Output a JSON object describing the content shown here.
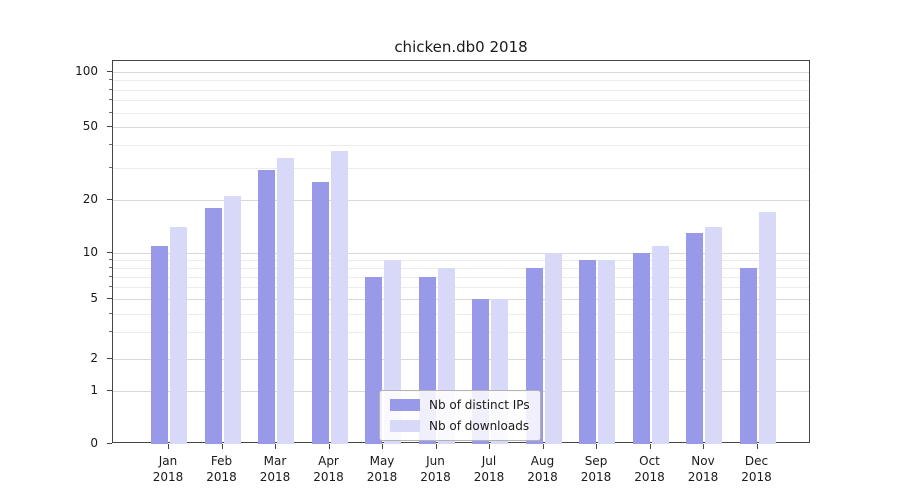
{
  "chart_data": {
    "type": "bar",
    "title": "chicken.db0 2018",
    "yscale": "log",
    "grid": true,
    "legend_position": "lower center",
    "categories": [
      {
        "month": "Jan",
        "year": "2018"
      },
      {
        "month": "Feb",
        "year": "2018"
      },
      {
        "month": "Mar",
        "year": "2018"
      },
      {
        "month": "Apr",
        "year": "2018"
      },
      {
        "month": "May",
        "year": "2018"
      },
      {
        "month": "Jun",
        "year": "2018"
      },
      {
        "month": "Jul",
        "year": "2018"
      },
      {
        "month": "Aug",
        "year": "2018"
      },
      {
        "month": "Sep",
        "year": "2018"
      },
      {
        "month": "Oct",
        "year": "2018"
      },
      {
        "month": "Nov",
        "year": "2018"
      },
      {
        "month": "Dec",
        "year": "2018"
      }
    ],
    "series": [
      {
        "name": "Nb of distinct IPs",
        "color": "#9999ea",
        "values": [
          11,
          18,
          29,
          25,
          7,
          7,
          5,
          8,
          9,
          10,
          13,
          8
        ]
      },
      {
        "name": "Nb of downloads",
        "color": "#d8d8f9",
        "values": [
          14,
          21,
          34,
          37,
          9,
          8,
          5,
          10,
          9,
          11,
          14,
          17
        ]
      }
    ],
    "yticks": [
      100,
      50,
      20,
      10,
      5,
      2,
      1,
      0
    ],
    "y_minor_ticks": [
      3,
      4,
      6,
      7,
      8,
      9,
      30,
      40,
      60,
      70,
      80,
      90
    ],
    "ylim": [
      0,
      110
    ],
    "colors": {
      "major_grid": "#d9d9d9",
      "minor_grid": "#ececec",
      "axis": "#454545"
    }
  }
}
